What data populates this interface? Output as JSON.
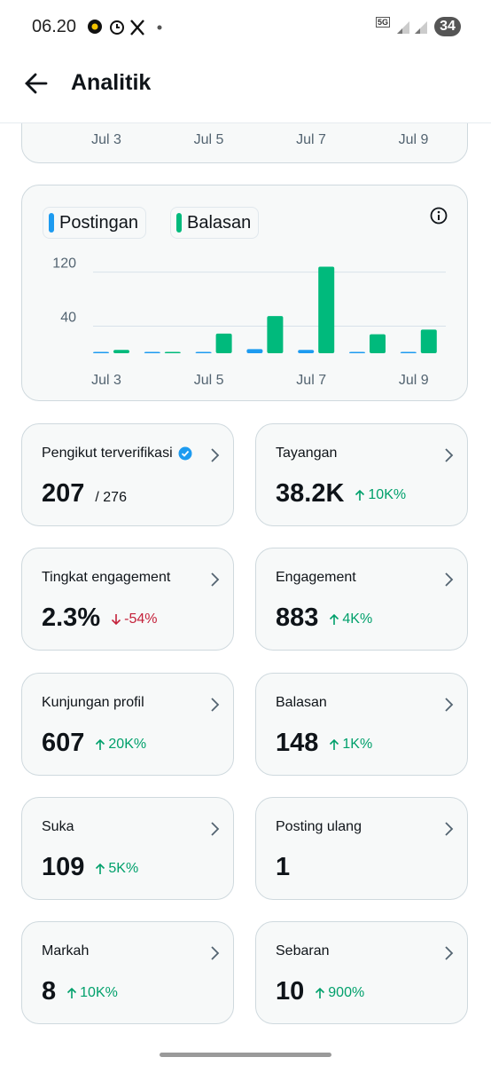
{
  "status_bar": {
    "time": "06.20",
    "network": "5G",
    "battery": "34"
  },
  "header": {
    "title": "Analitik"
  },
  "top_card": {
    "x_labels": [
      "Jul 3",
      "Jul 5",
      "Jul 7",
      "Jul 9"
    ]
  },
  "chart_data": {
    "type": "bar",
    "categories": [
      "Jul 3",
      null,
      "Jul 5",
      null,
      "Jul 7",
      null,
      "Jul 9"
    ],
    "series": [
      {
        "name": "Postingan",
        "color": "#1d9bf0",
        "values": [
          1,
          1,
          1,
          6,
          5,
          1,
          1
        ]
      },
      {
        "name": "Balasan",
        "color": "#00ba7c",
        "values": [
          5,
          1,
          29,
          55,
          128,
          28,
          35
        ]
      }
    ],
    "ylim": [
      0,
      130
    ],
    "yticks": [
      40,
      120
    ],
    "grid": true
  },
  "metrics": [
    {
      "label": "Pengikut terverifikasi",
      "value": "207",
      "total": "/ 276",
      "verified": true
    },
    {
      "label": "Tayangan",
      "value": "38.2K",
      "change": "10K%",
      "direction": "up"
    },
    {
      "label": "Tingkat engagement",
      "value": "2.3%",
      "change": "-54%",
      "direction": "down"
    },
    {
      "label": "Engagement",
      "value": "883",
      "change": "4K%",
      "direction": "up"
    },
    {
      "label": "Kunjungan profil",
      "value": "607",
      "change": "20K%",
      "direction": "up"
    },
    {
      "label": "Balasan",
      "value": "148",
      "change": "1K%",
      "direction": "up"
    },
    {
      "label": "Suka",
      "value": "109",
      "change": "5K%",
      "direction": "up"
    },
    {
      "label": "Posting ulang",
      "value": "1"
    },
    {
      "label": "Markah",
      "value": "8",
      "change": "10K%",
      "direction": "up"
    },
    {
      "label": "Sebaran",
      "value": "10",
      "change": "900%",
      "direction": "up"
    }
  ]
}
